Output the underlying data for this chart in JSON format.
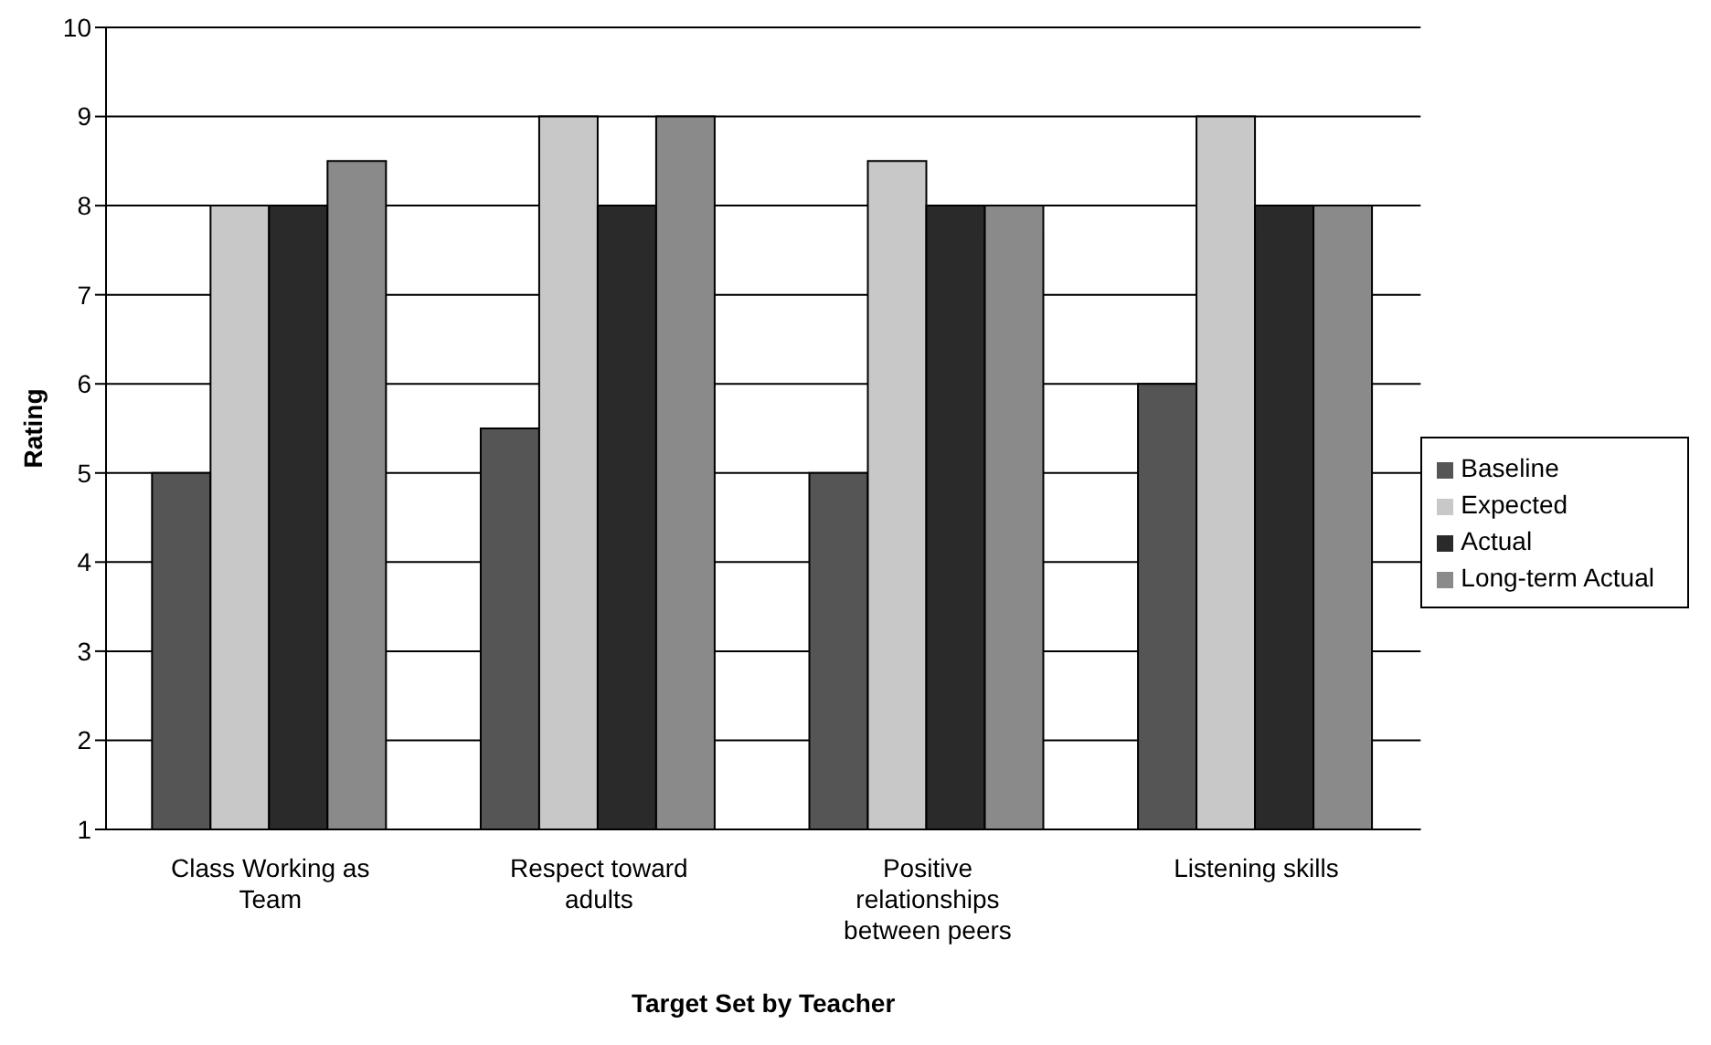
{
  "chart_data": {
    "type": "bar",
    "xlabel": "Target Set by Teacher",
    "ylabel": "Rating",
    "categories": [
      "Class Working as Team",
      "Respect toward adults",
      "Positive relationships between peers",
      "Listening skills"
    ],
    "series": [
      {
        "name": "Baseline",
        "color": "#555555",
        "values": [
          5,
          5.5,
          5,
          6
        ]
      },
      {
        "name": "Expected",
        "color": "#c8c8c8",
        "values": [
          8,
          9,
          8.5,
          9
        ]
      },
      {
        "name": "Actual",
        "color": "#2a2a2a",
        "values": [
          8,
          8,
          8,
          8
        ]
      },
      {
        "name": "Long-term Actual",
        "color": "#8a8a8a",
        "values": [
          8.5,
          9,
          8,
          8
        ]
      }
    ],
    "ylim": [
      1,
      10
    ],
    "yticks": [
      1,
      2,
      3,
      4,
      5,
      6,
      7,
      8,
      9,
      10
    ],
    "grid": "y",
    "legend": "right"
  }
}
